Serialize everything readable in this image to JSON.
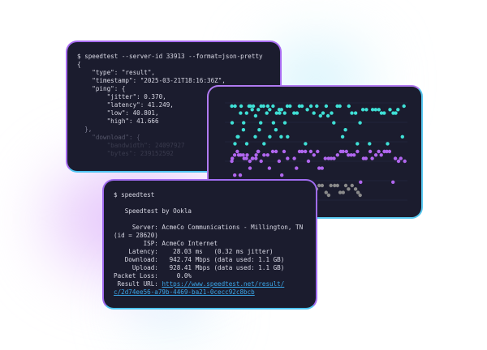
{
  "json_terminal": {
    "lines": [
      "$ speedtest --server-id 33913 --format=json-pretty",
      "{",
      "    \"type\": \"result\",",
      "    \"timestamp\": \"2025-03-21T18:16:36Z\",",
      "    \"ping\": {",
      "        \"jitter\": 0.370,",
      "        \"latency\": 41.249,",
      "        \"low\": 40.801,",
      "        \"high\": 41.666",
      "  },",
      "    \"download\": {",
      "        \"bandwidth\": 24097927",
      "        \"bytes\": 239152592"
    ]
  },
  "chart_card": {
    "colors": {
      "download": "#3fe0d6",
      "upload": "#b066ee",
      "latency": "#8a8a8a",
      "grid": "#2a2c44"
    }
  },
  "cli_terminal": {
    "prompt": "$ speedtest",
    "header": "   Speedtest by Ookla",
    "server": "     Server: AcmeCo Communications - Millington, TN",
    "server_id": "(id = 28620)",
    "isp": "        ISP: AcmeCo Internet",
    "latency": "    Latency:    28.03 ms   (0.32 ms jitter)",
    "download": "   Download:   942.74 Mbps (data used: 1.1 GB)",
    "upload": "     Upload:   928.41 Mbps (data used: 1.1 GB)",
    "packet_loss": "Packet Loss:     0.0%",
    "result_label": " Result URL: ",
    "result_url_1": "https://www.speedtest.net/result/",
    "result_url_2": "c/2d74ee56-a79b-4469-ba21-0cecc92c8bcb"
  }
}
